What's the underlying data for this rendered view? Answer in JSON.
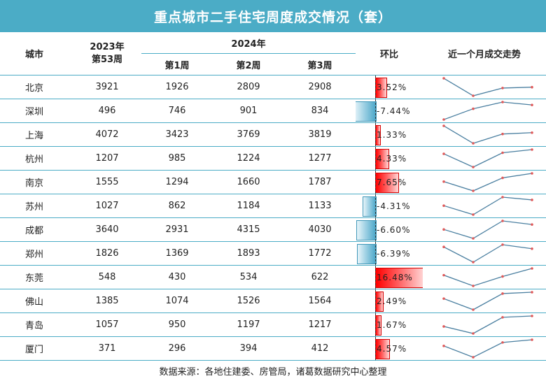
{
  "title": "重点城市二手住宅周度成交情况（套）",
  "header": {
    "city": "城市",
    "col2023": "2023年",
    "col2023_sub": "第53周",
    "group2024": "2024年",
    "week1": "第1周",
    "week2": "第2周",
    "week3": "第3周",
    "change": "环比",
    "trend": "近一个月成交走势"
  },
  "rows": [
    {
      "city": "北京",
      "w53": "3921",
      "w1": "1926",
      "w2": "2809",
      "w3": "2908",
      "change": "3.52%",
      "change_value": 3.52
    },
    {
      "city": "深圳",
      "w53": "496",
      "w1": "746",
      "w2": "901",
      "w3": "834",
      "change": "-7.44%",
      "change_value": -7.44
    },
    {
      "city": "上海",
      "w53": "4072",
      "w1": "3423",
      "w2": "3769",
      "w3": "3819",
      "change": "1.33%",
      "change_value": 1.33
    },
    {
      "city": "杭州",
      "w53": "1207",
      "w1": "985",
      "w2": "1224",
      "w3": "1277",
      "change": "4.33%",
      "change_value": 4.33
    },
    {
      "city": "南京",
      "w53": "1555",
      "w1": "1294",
      "w2": "1660",
      "w3": "1787",
      "change": "7.65%",
      "change_value": 7.65
    },
    {
      "city": "苏州",
      "w53": "1027",
      "w1": "862",
      "w2": "1184",
      "w3": "1133",
      "change": "-4.31%",
      "change_value": -4.31
    },
    {
      "city": "成都",
      "w53": "3640",
      "w1": "2931",
      "w2": "4315",
      "w3": "4030",
      "change": "-6.60%",
      "change_value": -6.6
    },
    {
      "city": "郑州",
      "w53": "1826",
      "w1": "1369",
      "w2": "1893",
      "w3": "1772",
      "change": "-6.39%",
      "change_value": -6.39
    },
    {
      "city": "东莞",
      "w53": "548",
      "w1": "430",
      "w2": "534",
      "w3": "622",
      "change": "16.48%",
      "change_value": 16.48
    },
    {
      "city": "佛山",
      "w53": "1385",
      "w1": "1074",
      "w2": "1526",
      "w3": "1564",
      "change": "2.49%",
      "change_value": 2.49
    },
    {
      "city": "青岛",
      "w53": "1057",
      "w1": "950",
      "w2": "1197",
      "w3": "1217",
      "change": "1.67%",
      "change_value": 1.67
    },
    {
      "city": "厦门",
      "w53": "371",
      "w1": "296",
      "w2": "394",
      "w3": "412",
      "change": "4.57%",
      "change_value": 4.57
    }
  ],
  "footer": "数据来源：各地住建委、房管局，诸葛数据研究中心整理",
  "colors": {
    "accent": "#4bacc6",
    "positive": "#ff0000",
    "negative": "#4aa6c8",
    "sparkline": "#4a7fa0",
    "marker": "#e05a5a"
  }
}
